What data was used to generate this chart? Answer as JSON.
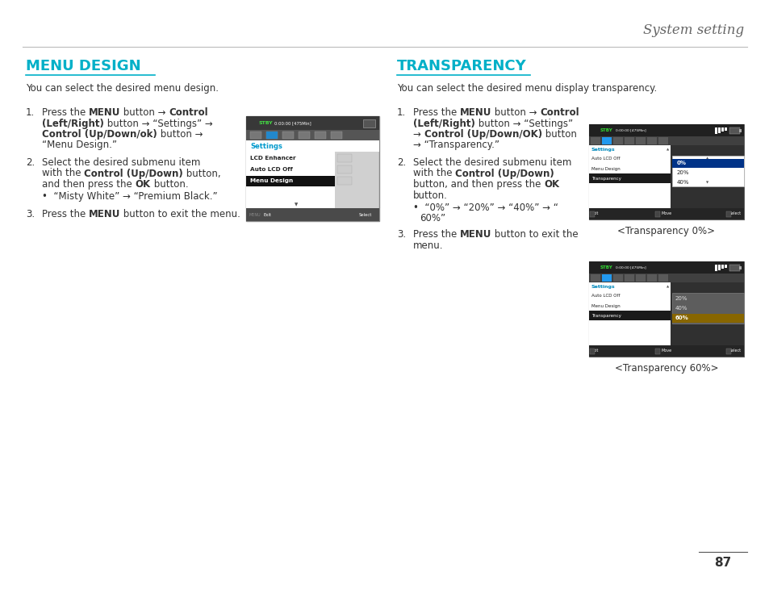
{
  "bg_color": "#ffffff",
  "header_text": "System setting",
  "header_text_color": "#666666",
  "page_number": "87",
  "left_title": "MENU DESIGN",
  "left_title_color": "#00b0c8",
  "left_intro": "You can select the desired menu design.",
  "right_title": "TRANSPARENCY",
  "right_title_color": "#00b0c8",
  "right_intro": "You can select the desired menu display transparency.",
  "caption1": "<Transparency 0%>",
  "caption2": "<Transparency 60%>",
  "text_color": "#333333",
  "bold_color": "#000000"
}
